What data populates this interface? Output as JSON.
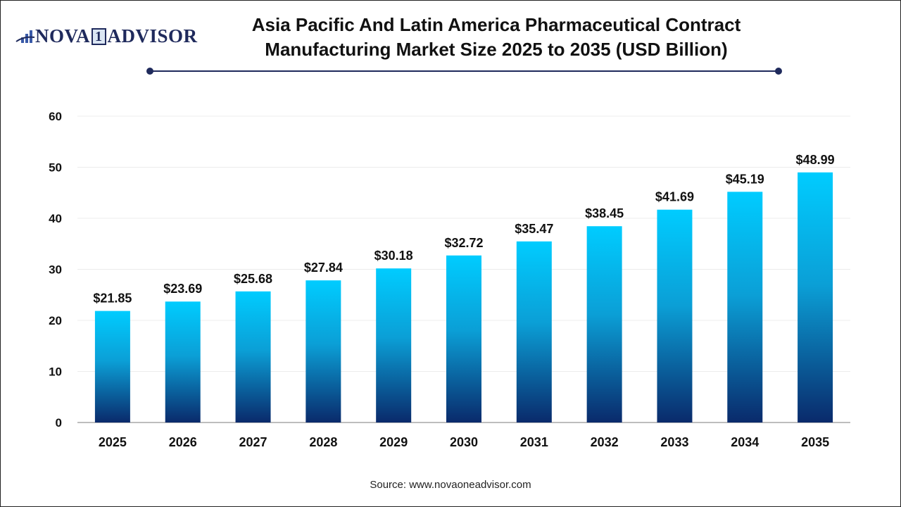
{
  "logo": {
    "text_left": "NOVA",
    "text_mid": "1",
    "text_right": "ADVISOR",
    "icon": "bar-chart-swoosh-icon"
  },
  "title_line1": "Asia Pacific And Latin America Pharmaceutical Contract",
  "title_line2": "Manufacturing Market Size 2025 to 2035 (USD Billion)",
  "source": "Source: www.novaoneadvisor.com",
  "colors": {
    "bar_top": "#00ccff",
    "bar_bottom": "#0a2a6b",
    "accent": "#1f2a5c"
  },
  "chart_data": {
    "type": "bar",
    "title": "Asia Pacific And Latin America Pharmaceutical Contract Manufacturing Market Size 2025 to 2035 (USD Billion)",
    "categories": [
      "2025",
      "2026",
      "2027",
      "2028",
      "2029",
      "2030",
      "2031",
      "2032",
      "2033",
      "2034",
      "2035"
    ],
    "values": [
      21.85,
      23.69,
      25.68,
      27.84,
      30.18,
      32.72,
      35.47,
      38.45,
      41.69,
      45.19,
      48.99
    ],
    "data_labels": [
      "$21.85",
      "$23.69",
      "$25.68",
      "$27.84",
      "$30.18",
      "$32.72",
      "$35.47",
      "$38.45",
      "$41.69",
      "$45.19",
      "$48.99"
    ],
    "yticks": [
      0,
      10,
      20,
      30,
      40,
      50,
      60
    ],
    "ylim": [
      0,
      60
    ],
    "xlabel": "",
    "ylabel": "",
    "grid": true,
    "legend": "none"
  }
}
